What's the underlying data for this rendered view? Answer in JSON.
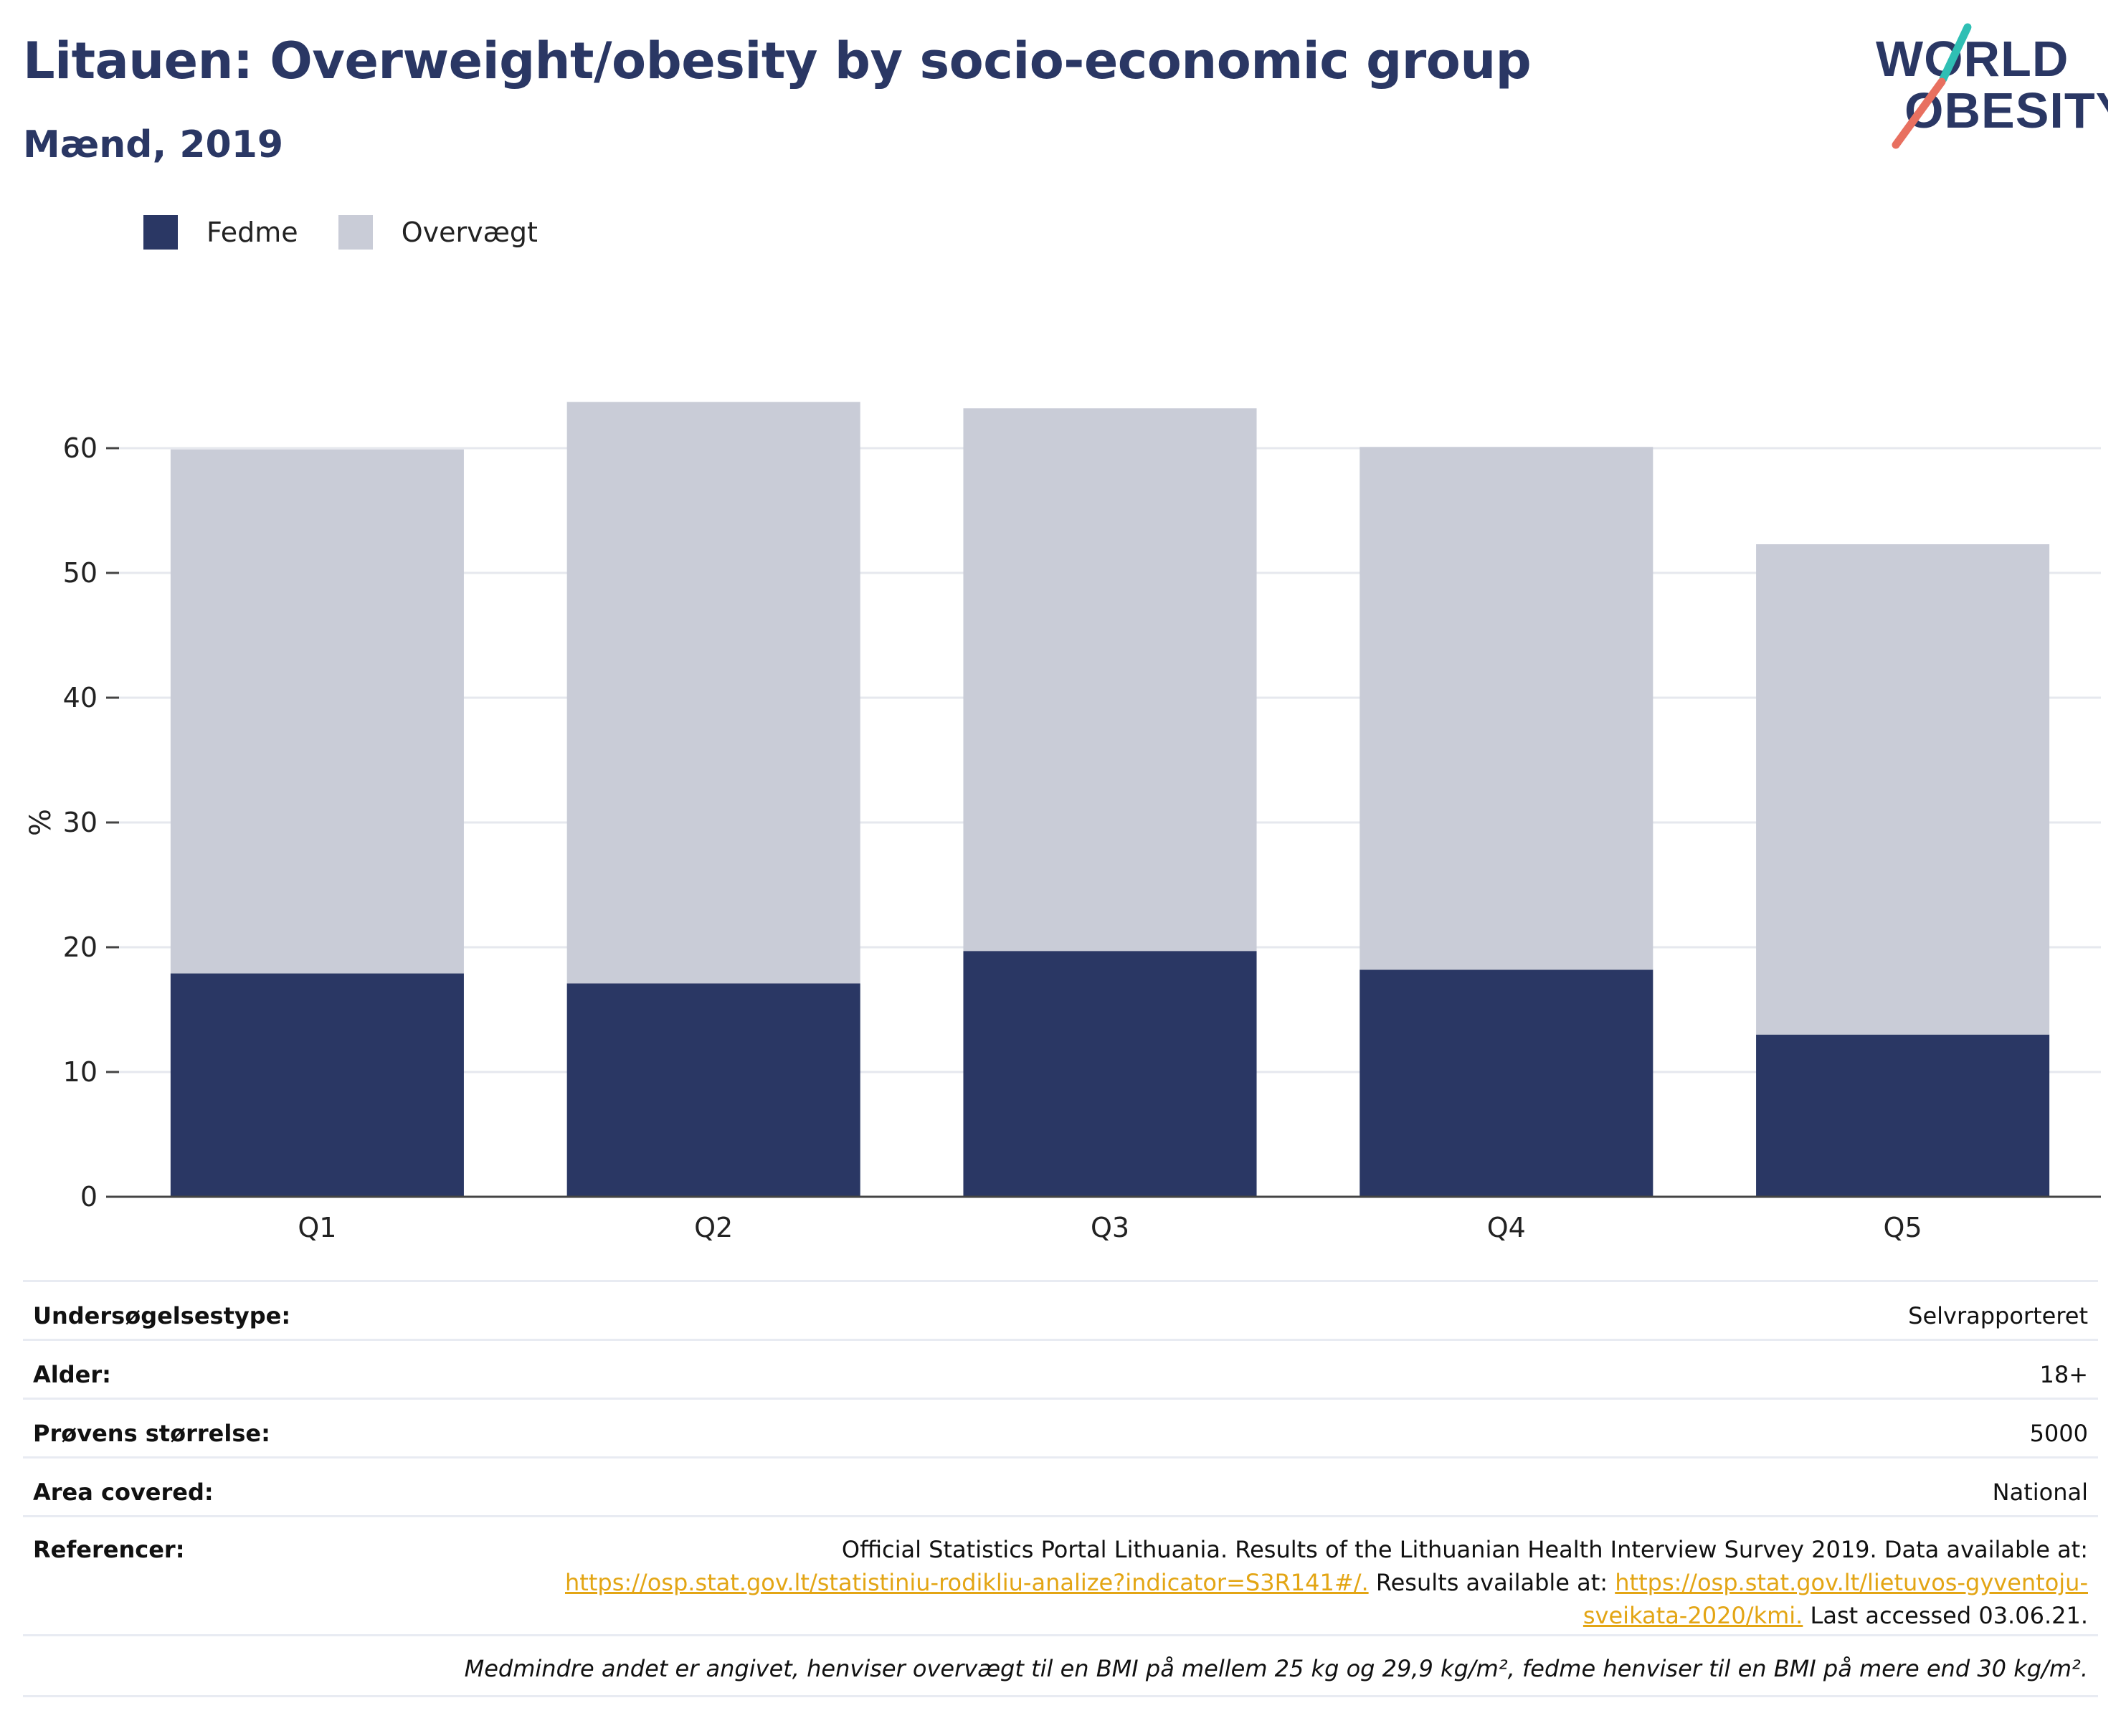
{
  "header": {
    "title": "Litauen: Overweight/obesity by socio-economic group",
    "subtitle": "Mænd, 2019"
  },
  "logo": {
    "line1": "WORLD",
    "line2": "OBESITY"
  },
  "colors": {
    "fedme": "#2a3764",
    "overvaegt": "#c9ccd7",
    "title": "#2a3764",
    "link": "#e3a514",
    "logo_teal": "#2fbfb4",
    "logo_coral": "#e87060"
  },
  "chart_data": {
    "type": "bar",
    "stacked": true,
    "categories": [
      "Q1",
      "Q2",
      "Q3",
      "Q4",
      "Q5"
    ],
    "series": [
      {
        "name": "Fedme",
        "values": [
          17.9,
          17.1,
          19.7,
          18.2,
          13.0
        ]
      },
      {
        "name": "Overvægt",
        "values": [
          42.0,
          46.6,
          43.5,
          41.9,
          39.3
        ]
      }
    ],
    "ylabel": "%",
    "xlabel": "",
    "ylim": [
      0,
      65
    ],
    "yticks": [
      0,
      10,
      20,
      30,
      40,
      50,
      60
    ],
    "grid": true,
    "legend_position": "top-left"
  },
  "meta": {
    "rows": [
      {
        "label": "Undersøgelsestype:",
        "value": "Selvrapporteret"
      },
      {
        "label": "Alder:",
        "value": "18+"
      },
      {
        "label": "Prøvens størrelse:",
        "value": "5000"
      },
      {
        "label": "Area covered:",
        "value": "National"
      }
    ],
    "references": {
      "label": "Referencer:",
      "text1": "Official Statistics Portal Lithuania. Results of the Lithuanian Health Interview Survey 2019. Data available at:",
      "link1": "https://osp.stat.gov.lt/statistiniu-rodikliu-analize?indicator=S3R141#/.",
      "text2": " Results available at: ",
      "link2a": "https://osp.stat.gov.lt/lietuvos-gyventoju-",
      "link2b": "sveikata-2020/kmi.",
      "text3": " Last accessed 03.06.21."
    },
    "note": "Medmindre andet er angivet, henviser overvægt til en BMI på mellem 25 kg og 29,9 kg/m², fedme henviser til en BMI på mere end 30 kg/m²."
  }
}
